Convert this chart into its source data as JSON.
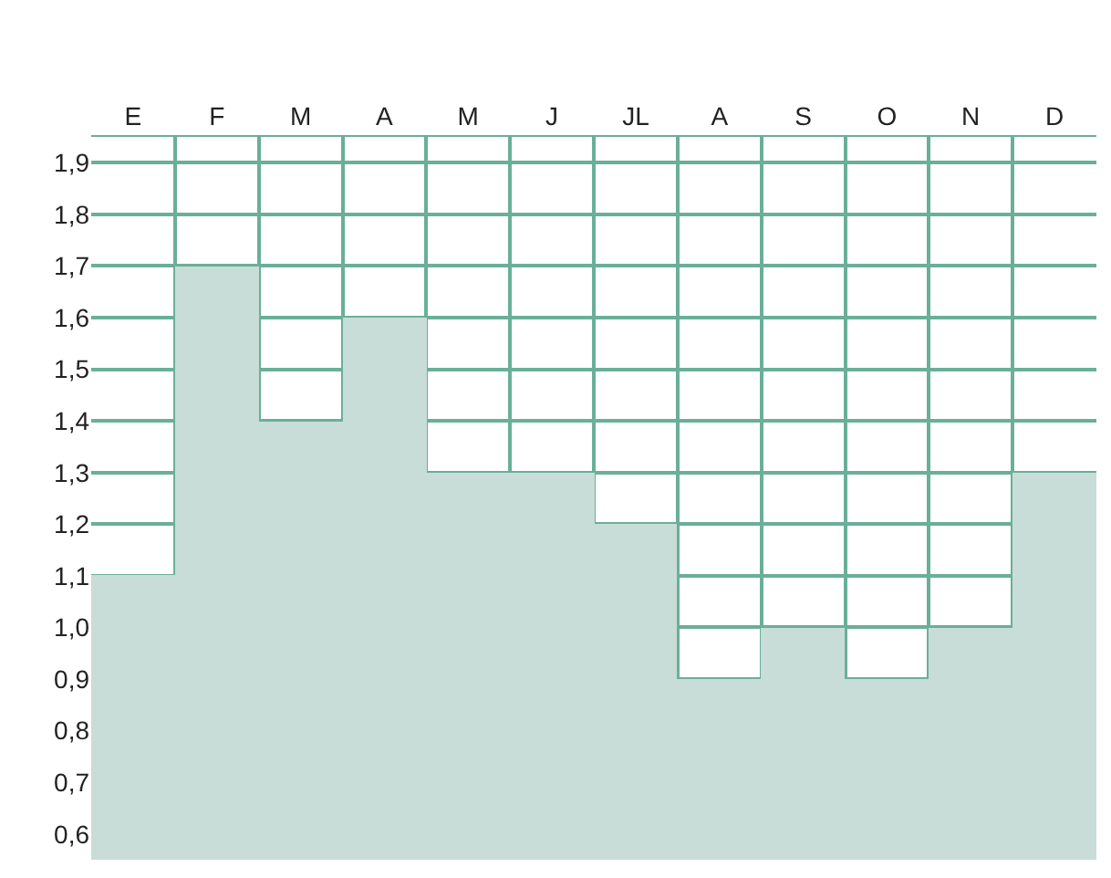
{
  "chart_data": {
    "type": "bar",
    "categories": [
      "E",
      "F",
      "M",
      "A",
      "M",
      "J",
      "JL",
      "A",
      "S",
      "O",
      "N",
      "D"
    ],
    "values": [
      1.1,
      1.7,
      1.4,
      1.6,
      1.3,
      1.3,
      1.2,
      0.9,
      1.0,
      0.9,
      1.0,
      1.3
    ],
    "color": "#c8ddd7",
    "ylim": [
      0.55,
      1.95
    ],
    "yticks": [
      {
        "value": 0.6,
        "label": "0,6"
      },
      {
        "value": 0.7,
        "label": "0,7"
      },
      {
        "value": 0.8,
        "label": "0,8"
      },
      {
        "value": 0.9,
        "label": "0,9"
      },
      {
        "value": 1.0,
        "label": "1,0"
      },
      {
        "value": 1.1,
        "label": "1,1"
      },
      {
        "value": 1.2,
        "label": "1,2"
      },
      {
        "value": 1.3,
        "label": "1,3"
      },
      {
        "value": 1.4,
        "label": "1,4"
      },
      {
        "value": 1.5,
        "label": "1,5"
      },
      {
        "value": 1.6,
        "label": "1,6"
      },
      {
        "value": 1.7,
        "label": "1,7"
      },
      {
        "value": 1.8,
        "label": "1,8"
      },
      {
        "value": 1.9,
        "label": "1,9"
      }
    ],
    "grid": true,
    "legend": false
  }
}
